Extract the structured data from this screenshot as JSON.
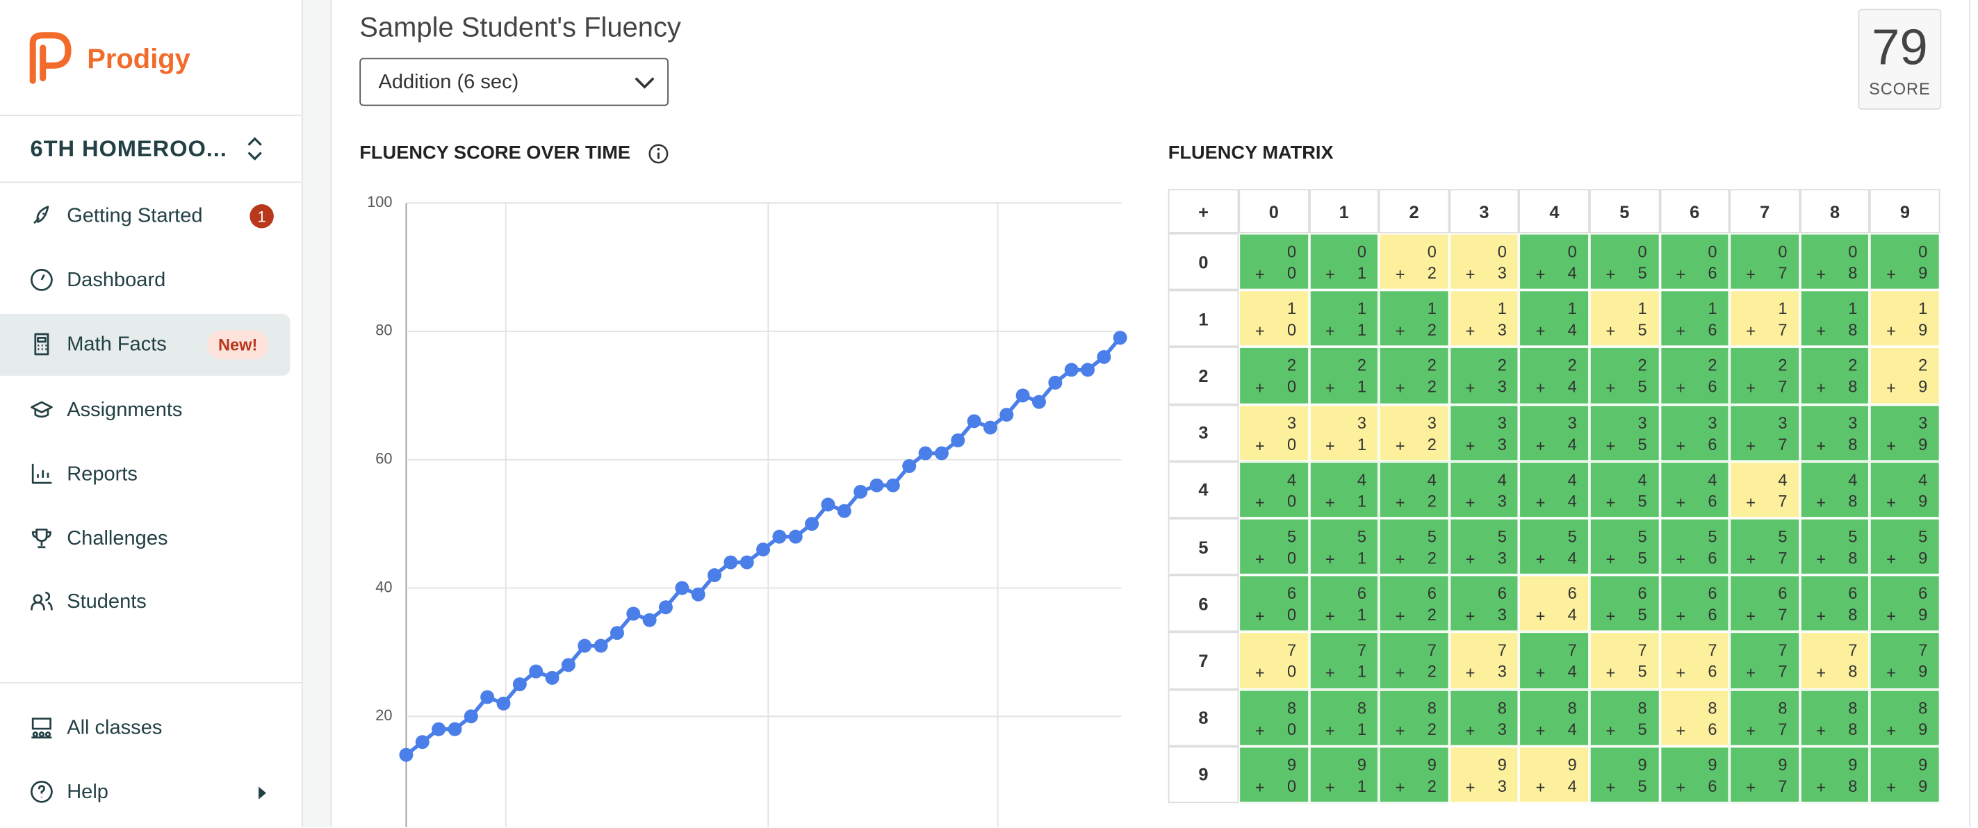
{
  "sidebar": {
    "logo": "Prodigy",
    "class_name": "6TH HOMEROO...",
    "nav": [
      {
        "label": "Getting Started",
        "badge": "1"
      },
      {
        "label": "Dashboard"
      },
      {
        "label": "Math Facts",
        "badge": "New!"
      },
      {
        "label": "Assignments"
      },
      {
        "label": "Reports"
      },
      {
        "label": "Challenges"
      },
      {
        "label": "Students"
      }
    ],
    "footer_nav": [
      {
        "label": "All classes"
      },
      {
        "label": "Help"
      }
    ]
  },
  "header": {
    "title": "Sample Student's Fluency",
    "dropdown": "Addition (6 sec)",
    "score": 79,
    "score_label": "SCORE"
  },
  "chart_data": {
    "type": "line",
    "title": "FLUENCY SCORE OVER TIME",
    "color": "#4a7ee8",
    "values": [
      14,
      16,
      18,
      18,
      20,
      23,
      22,
      25,
      27,
      26,
      28,
      31,
      31,
      33,
      36,
      35,
      37,
      40,
      39,
      42,
      44,
      44,
      46,
      48,
      48,
      50,
      53,
      52,
      55,
      56,
      56,
      59,
      61,
      61,
      63,
      66,
      65,
      67,
      70,
      69,
      72,
      74,
      74,
      76,
      79
    ],
    "ylim": [
      0,
      100
    ],
    "yticks": [
      20,
      40,
      60,
      80,
      100
    ],
    "grid": true
  },
  "matrix": {
    "title": "FLUENCY MATRIX",
    "operator": "+",
    "columns": [
      "0",
      "1",
      "2",
      "3",
      "4",
      "5",
      "6",
      "7",
      "8",
      "9"
    ],
    "rows": [
      "0",
      "1",
      "2",
      "3",
      "4",
      "5",
      "6",
      "7",
      "8",
      "9"
    ],
    "cell_colors": [
      [
        "#5cc46a",
        "#5cc46a",
        "#fcf09c",
        "#fcf09c",
        "#5cc46a",
        "#5cc46a",
        "#5cc46a",
        "#5cc46a",
        "#5cc46a",
        "#5cc46a"
      ],
      [
        "#fcf09c",
        "#5cc46a",
        "#5cc46a",
        "#fcf09c",
        "#5cc46a",
        "#fcf09c",
        "#5cc46a",
        "#fcf09c",
        "#5cc46a",
        "#fcf09c"
      ],
      [
        "#5cc46a",
        "#5cc46a",
        "#5cc46a",
        "#5cc46a",
        "#5cc46a",
        "#5cc46a",
        "#5cc46a",
        "#5cc46a",
        "#5cc46a",
        "#fcf09c"
      ],
      [
        "#fcf09c",
        "#fcf09c",
        "#fcf09c",
        "#5cc46a",
        "#5cc46a",
        "#5cc46a",
        "#5cc46a",
        "#5cc46a",
        "#5cc46a",
        "#5cc46a"
      ],
      [
        "#5cc46a",
        "#5cc46a",
        "#5cc46a",
        "#5cc46a",
        "#5cc46a",
        "#5cc46a",
        "#5cc46a",
        "#fcf09c",
        "#5cc46a",
        "#5cc46a"
      ],
      [
        "#5cc46a",
        "#5cc46a",
        "#5cc46a",
        "#5cc46a",
        "#5cc46a",
        "#5cc46a",
        "#5cc46a",
        "#5cc46a",
        "#5cc46a",
        "#5cc46a"
      ],
      [
        "#5cc46a",
        "#5cc46a",
        "#5cc46a",
        "#5cc46a",
        "#fcf09c",
        "#5cc46a",
        "#5cc46a",
        "#5cc46a",
        "#5cc46a",
        "#5cc46a"
      ],
      [
        "#fcf09c",
        "#5cc46a",
        "#5cc46a",
        "#fcf09c",
        "#5cc46a",
        "#fcf09c",
        "#fcf09c",
        "#5cc46a",
        "#fcf09c",
        "#5cc46a"
      ],
      [
        "#5cc46a",
        "#5cc46a",
        "#5cc46a",
        "#5cc46a",
        "#5cc46a",
        "#5cc46a",
        "#fcf09c",
        "#5cc46a",
        "#5cc46a",
        "#5cc46a"
      ],
      [
        "#5cc46a",
        "#5cc46a",
        "#5cc46a",
        "#fcf09c",
        "#fcf09c",
        "#5cc46a",
        "#5cc46a",
        "#5cc46a",
        "#5cc46a",
        "#5cc46a"
      ]
    ]
  }
}
